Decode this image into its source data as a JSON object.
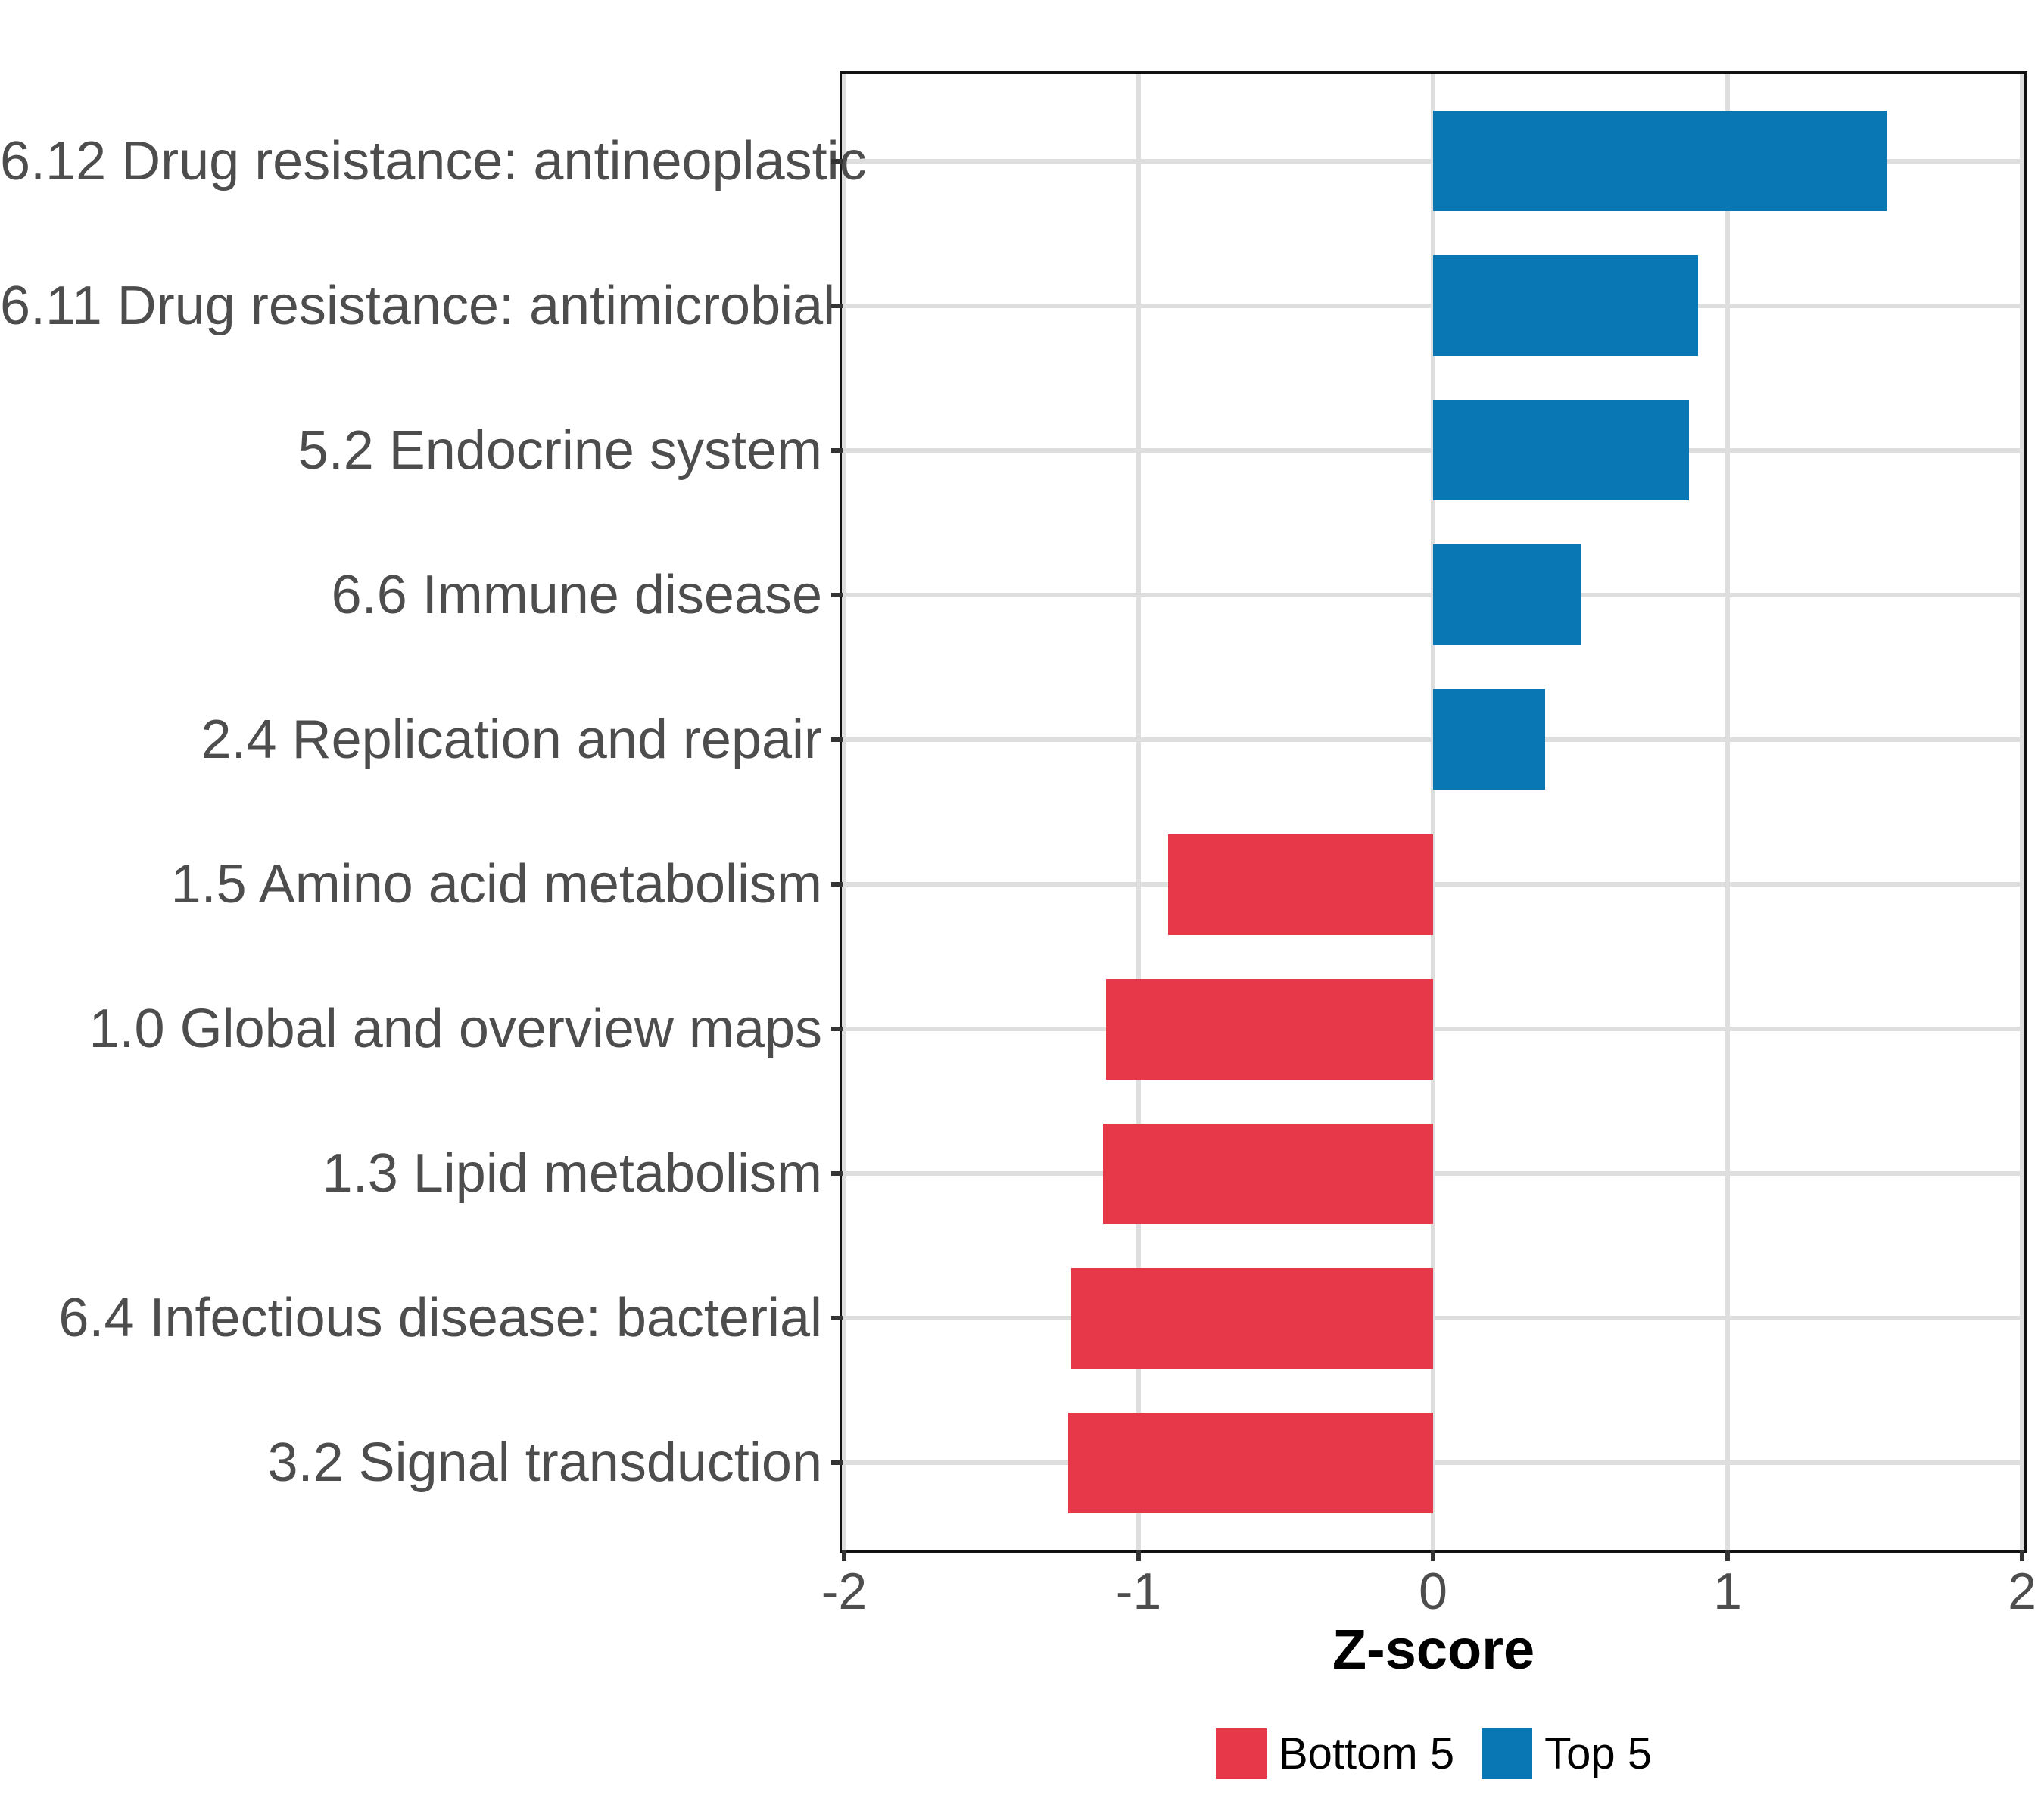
{
  "chart_data": {
    "type": "bar",
    "orientation": "horizontal",
    "title": "",
    "xlabel": "Z-score",
    "ylabel": "",
    "xlim": [
      -2.005,
      2.01
    ],
    "x_ticks": [
      -2,
      -1,
      0,
      1,
      2
    ],
    "x_tick_labels": [
      "-2",
      "-1",
      "0",
      "1",
      "2"
    ],
    "grid": "major-on",
    "legend_position": "bottom",
    "categories": [
      "6.12 Drug resistance: antineoplastic",
      "6.11 Drug resistance: antimicrobial",
      "5.2 Endocrine system",
      "6.6 Immune disease",
      "2.4 Replication and repair",
      "1.5 Amino acid metabolism",
      "1.0 Global and overview maps",
      "1.3 Lipid metabolism",
      "6.4 Infectious disease: bacterial",
      "3.2 Signal transduction"
    ],
    "values": [
      1.54,
      0.9,
      0.87,
      0.5,
      0.38,
      -0.9,
      -1.11,
      -1.12,
      -1.23,
      -1.24
    ],
    "groups": [
      "Top 5",
      "Top 5",
      "Top 5",
      "Top 5",
      "Top 5",
      "Bottom 5",
      "Bottom 5",
      "Bottom 5",
      "Bottom 5",
      "Bottom 5"
    ],
    "legend": [
      {
        "label": "Bottom 5",
        "color": "#e73849"
      },
      {
        "label": "Top 5",
        "color": "#0877b4"
      }
    ],
    "colors": {
      "bar_positive": "#0877b4",
      "bar_negative": "#e73849",
      "gridline": "#dedede",
      "panel_border": "#111111",
      "axis_text": "#4d4d4d",
      "tick_mark": "#333333",
      "title_text": "#000000"
    }
  }
}
